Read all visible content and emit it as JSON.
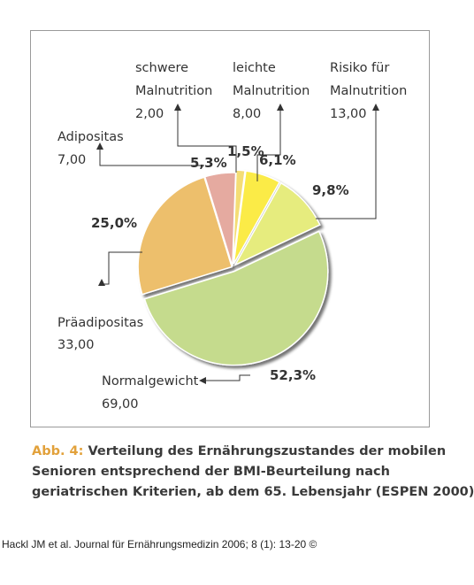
{
  "chart_data": {
    "type": "pie",
    "title": "",
    "slices": [
      {
        "label_lines": [
          "schwere",
          "Malnutrition"
        ],
        "value_label": "2,00",
        "value": 2.0,
        "percent_label": "1,5%",
        "percent": 1.5,
        "color": "#f4dd75"
      },
      {
        "label_lines": [
          "leichte",
          "Malnutrition"
        ],
        "value_label": "8,00",
        "value": 8.0,
        "percent_label": "6,1%",
        "percent": 6.1,
        "color": "#fbeb47"
      },
      {
        "label_lines": [
          "Risiko für",
          "Malnutrition"
        ],
        "value_label": "13,00",
        "value": 13.0,
        "percent_label": "9,8%",
        "percent": 9.8,
        "color": "#e6ec7e"
      },
      {
        "label_lines": [
          "Normalgewicht"
        ],
        "value_label": "69,00",
        "value": 69.0,
        "percent_label": "52,3%",
        "percent": 52.3,
        "color": "#c5db8d"
      },
      {
        "label_lines": [
          "Präadipositas"
        ],
        "value_label": "33,00",
        "value": 33.0,
        "percent_label": "25,0%",
        "percent": 25.0,
        "color": "#edbf6c"
      },
      {
        "label_lines": [
          "Adipositas"
        ],
        "value_label": "7,00",
        "value": 7.0,
        "percent_label": "5,3%",
        "percent": 5.3,
        "color": "#e5aaa0"
      }
    ]
  },
  "caption": {
    "prefix": "Abb. 4:",
    "lines": [
      " Verteilung des Ernährungszustandes der mobilen",
      "Senioren entsprechend der BMI-Beurteilung nach",
      "geriatrischen Kriterien, ab dem 65. Lebensjahr (ESPEN 2000)"
    ]
  },
  "source": "Hackl JM et al. Journal für Ernährungsmedizin 2006; 8 (1): 13-20 ©"
}
